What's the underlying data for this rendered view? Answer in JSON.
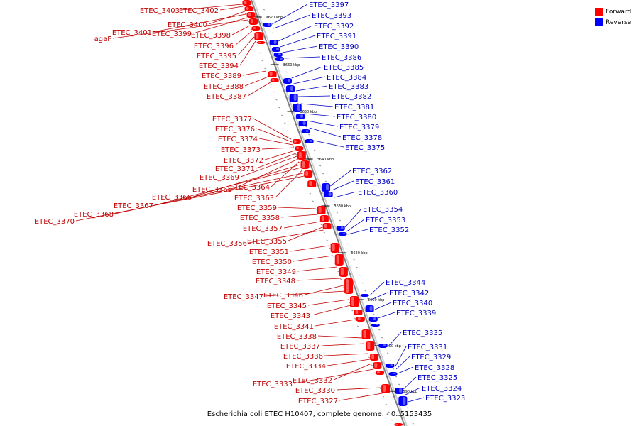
{
  "legend": [
    {
      "label": "Forward",
      "color": "#ff0000"
    },
    {
      "label": "Reverse",
      "color": "#0000ff"
    }
  ],
  "caption": "Escherichia coli ETEC H10407, complete genome. - 0..5153435",
  "colors": {
    "forward_fill": "#ff0000",
    "forward_text": "#c00000",
    "reverse_fill": "#0000ff",
    "reverse_text": "#0000c0",
    "backbone": "#808080"
  },
  "ticks": [
    "3670 kbp",
    "3660 kbp",
    "3650 kbp",
    "3640 kbp",
    "3630 kbp",
    "3620 kbp",
    "3610 kbp",
    "3600 kbp",
    "3590 kbp"
  ],
  "forward_genes": [
    "ETEC_3403",
    "ETEC_3402",
    "ETEC_3400",
    "ETEC_3401",
    "ETEC_3399",
    "agaF",
    "ETEC_3398",
    "ETEC_3396",
    "ETEC_3395",
    "ETEC_3394",
    "ETEC_3389",
    "ETEC_3388",
    "ETEC_3387",
    "ETEC_3377",
    "ETEC_3376",
    "ETEC_3374",
    "ETEC_3373",
    "ETEC_3372",
    "ETEC_3371",
    "ETEC_3369",
    "ETEC_3365",
    "ETEC_3364",
    "ETEC_3366",
    "ETEC_3367",
    "ETEC_3363",
    "ETEC_3368",
    "ETEC_3370",
    "ETEC_3359",
    "ETEC_3358",
    "ETEC_3357",
    "ETEC_3355",
    "ETEC_3356",
    "ETEC_3351",
    "ETEC_3350",
    "ETEC_3349",
    "ETEC_3348",
    "ETEC_3346",
    "ETEC_3347",
    "ETEC_3345",
    "ETEC_3343",
    "ETEC_3341",
    "ETEC_3338",
    "ETEC_3337",
    "ETEC_3336",
    "ETEC_3334",
    "ETEC_3332",
    "ETEC_3333",
    "ETEC_3330",
    "ETEC_3327"
  ],
  "reverse_genes": [
    "ETEC_3397",
    "ETEC_3393",
    "ETEC_3392",
    "ETEC_3391",
    "ETEC_3390",
    "ETEC_3386",
    "ETEC_3385",
    "ETEC_3384",
    "ETEC_3383",
    "ETEC_3382",
    "ETEC_3381",
    "ETEC_3380",
    "ETEC_3379",
    "ETEC_3378",
    "ETEC_3375",
    "ETEC_3362",
    "ETEC_3361",
    "ETEC_3360",
    "ETEC_3354",
    "ETEC_3353",
    "ETEC_3352",
    "ETEC_3344",
    "ETEC_3342",
    "ETEC_3340",
    "ETEC_3339",
    "ETEC_3335",
    "ETEC_3331",
    "ETEC_3329",
    "ETEC_3328",
    "ETEC_3325",
    "ETEC_3324",
    "ETEC_3323"
  ]
}
